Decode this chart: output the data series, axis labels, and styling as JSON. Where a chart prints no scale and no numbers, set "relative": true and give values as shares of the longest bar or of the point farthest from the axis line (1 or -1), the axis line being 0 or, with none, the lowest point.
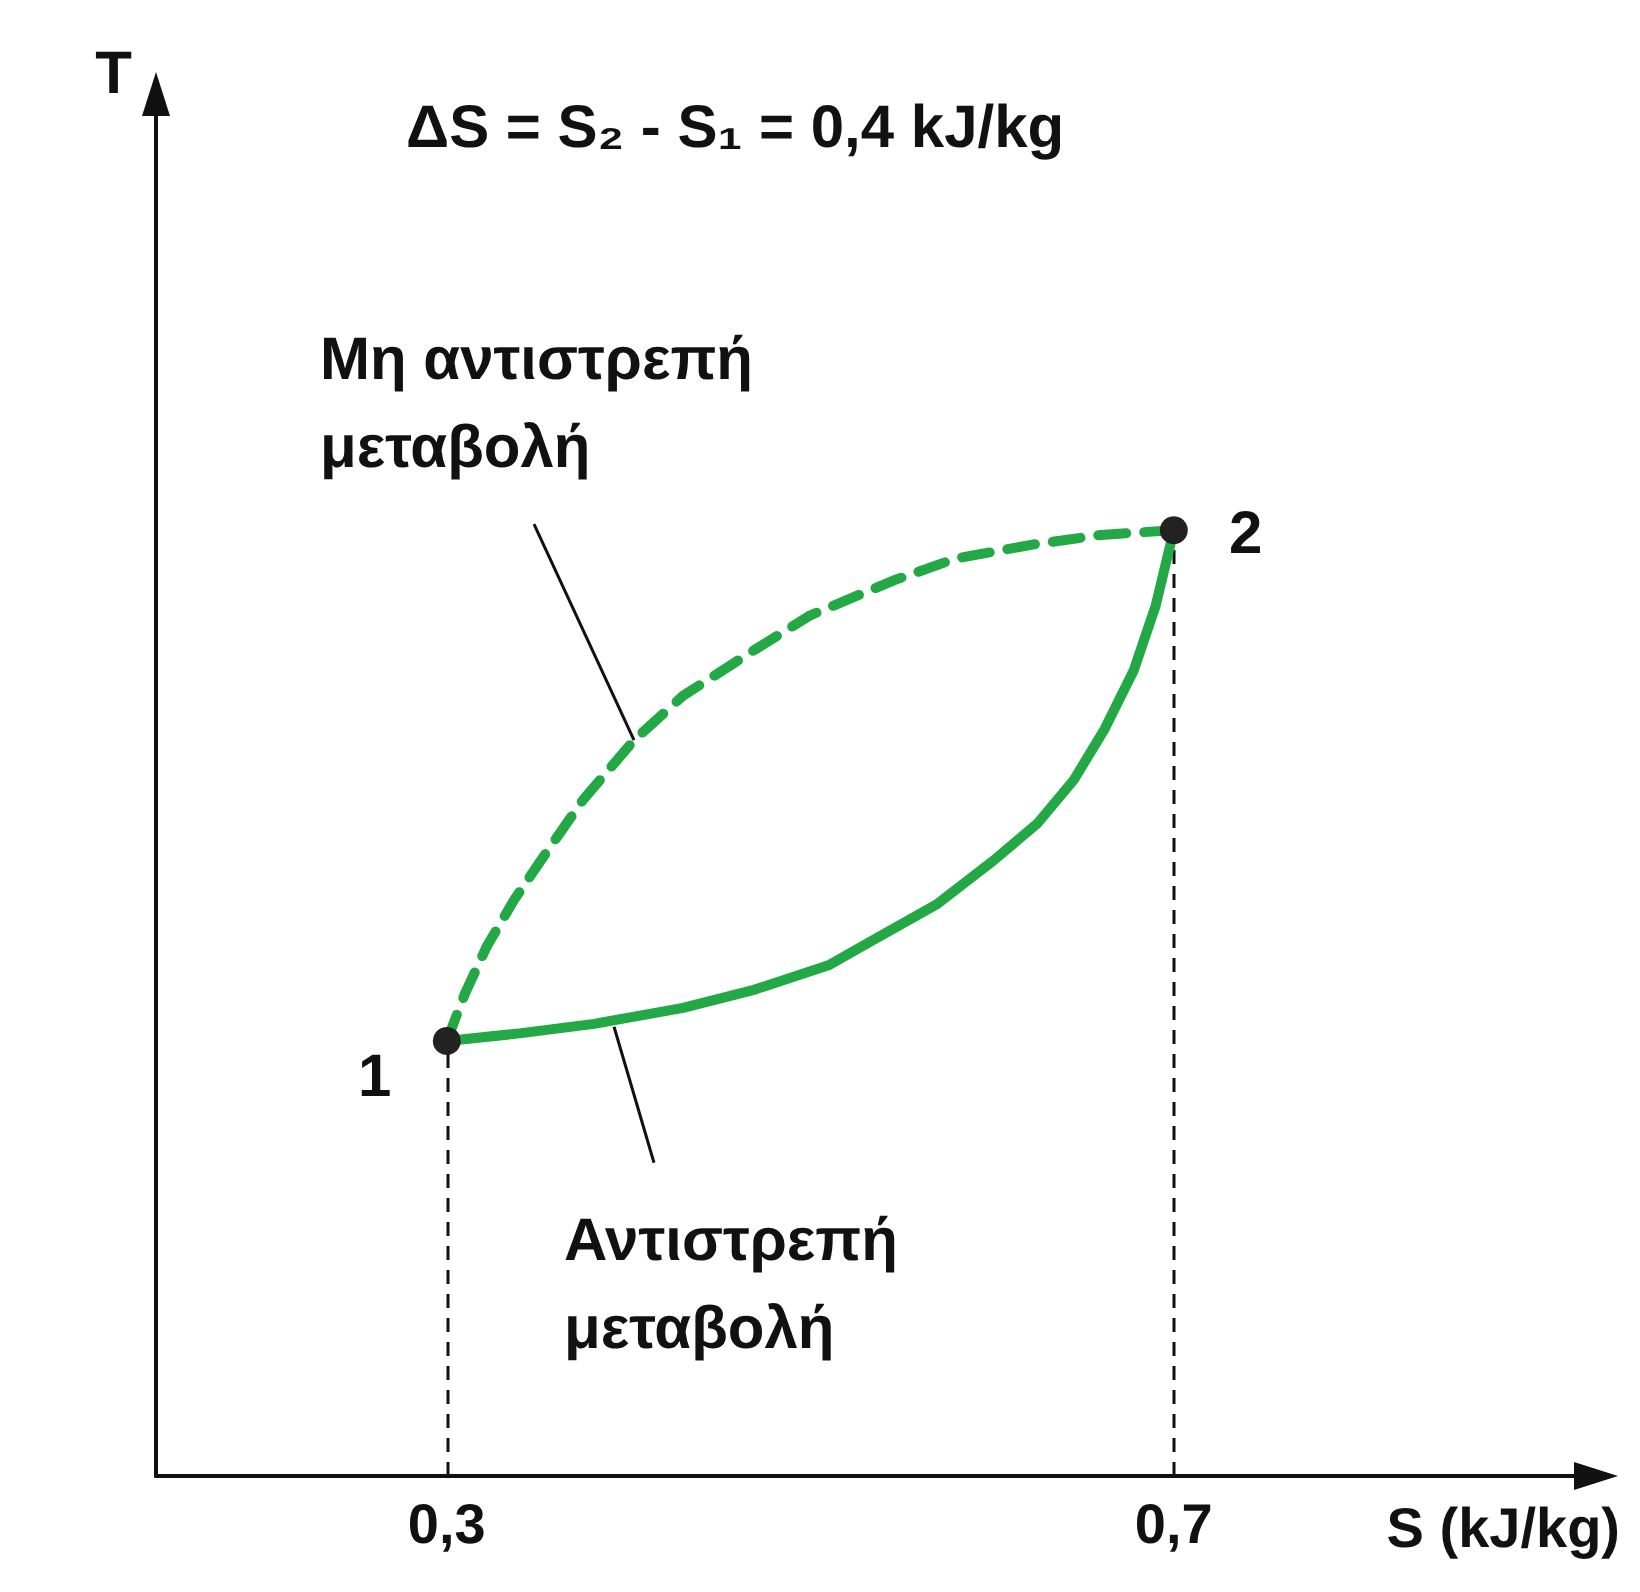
{
  "chart_data": {
    "type": "line",
    "title": "ΔS = S₂ - S₁ = 0,4 kJ/kg",
    "xlabel": "S (kJ/kg)",
    "relative": true,
    "xlim": [
      0.14,
      0.94
    ],
    "xticks": [
      {
        "value": 0.3,
        "label": "0,3"
      },
      {
        "value": 0.7,
        "label": "0,7"
      }
    ],
    "series": [
      {
        "color": "#22a844",
        "line_style": "dashed",
        "x": [
          0.3,
          0.31,
          0.322,
          0.337,
          0.355,
          0.375,
          0.403,
          0.43,
          0.469,
          0.5,
          0.546,
          0.58,
          0.623,
          0.66,
          0.7
        ],
        "values": [
          0.46,
          0.51,
          0.56,
          0.609,
          0.66,
          0.715,
          0.778,
          0.825,
          0.873,
          0.91,
          0.947,
          0.97,
          0.985,
          0.995,
          1
        ]
      },
      {
        "color": "#22a844",
        "line_style": "solid",
        "x": [
          0.3,
          0.34,
          0.381,
          0.43,
          0.469,
          0.51,
          0.535,
          0.57,
          0.601,
          0.625,
          0.645,
          0.662,
          0.678,
          0.69,
          0.7
        ],
        "values": [
          0.46,
          0.468,
          0.478,
          0.495,
          0.514,
          0.54,
          0.567,
          0.605,
          0.651,
          0.69,
          0.736,
          0.79,
          0.852,
          0.92,
          1
        ]
      }
    ],
    "ref_lines": [
      {
        "axis": "x",
        "value": 0.3,
        "color": "#111111",
        "line_style": "dashed"
      },
      {
        "axis": "x",
        "value": 0.7,
        "color": "#111111",
        "line_style": "dashed"
      }
    ],
    "annotations": [
      {
        "text": "1",
        "x": 0.3,
        "y": 0.46
      },
      {
        "text": "2",
        "x": 0.7,
        "y": 1
      },
      {
        "text": "Μη αντιστρεπή\nμεταβολή",
        "x": 0.403,
        "y": 0.778
      },
      {
        "text": "Αντιστρεπή\nμεταβολή",
        "x": 0.392,
        "y": 0.475
      },
      "T"
    ]
  }
}
